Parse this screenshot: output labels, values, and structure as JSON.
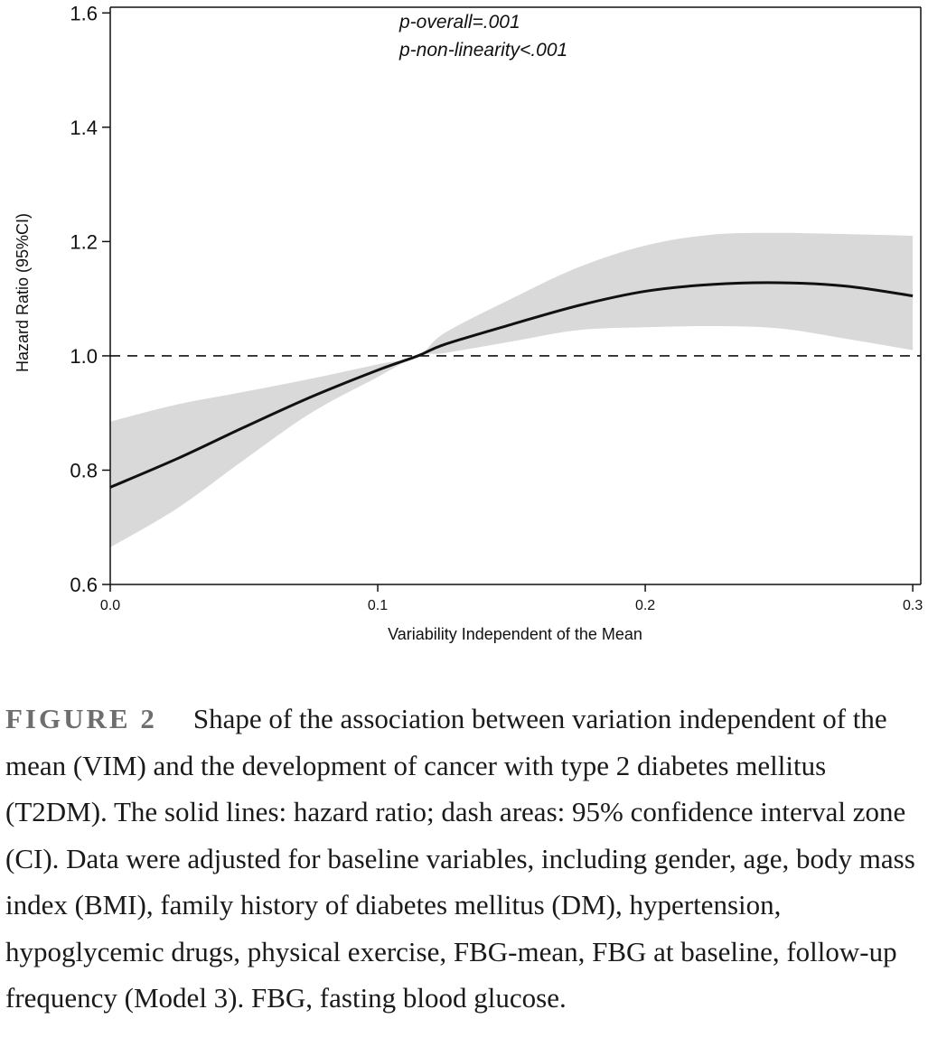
{
  "chart_data": {
    "type": "line",
    "xlabel": "Variability Independent of the Mean",
    "ylabel": "Hazard Ratio (95%CI)",
    "xlim": [
      0,
      0.303
    ],
    "ylim": [
      0.6,
      1.61
    ],
    "x_ticks": [
      0.0,
      0.1,
      0.2,
      0.3
    ],
    "x_tick_labels": [
      "0.0",
      "0.1",
      "0.2",
      "0.3"
    ],
    "y_ticks": [
      0.6,
      0.8,
      1.0,
      1.2,
      1.4,
      1.6
    ],
    "y_tick_labels": [
      "0.6",
      "0.8",
      "1.0",
      "1.2",
      "1.4",
      "1.6"
    ],
    "reference_line": {
      "y": 1.0,
      "style": "dashed"
    },
    "annotations": [
      "p-overall=.001",
      "p-non-linearity<.001"
    ],
    "grid": false,
    "series": [
      {
        "role": "hazard-ratio",
        "x": [
          0.0,
          0.025,
          0.05,
          0.075,
          0.1,
          0.115,
          0.125,
          0.15,
          0.175,
          0.2,
          0.225,
          0.25,
          0.275,
          0.3
        ],
        "y": [
          0.77,
          0.82,
          0.875,
          0.928,
          0.975,
          1.0,
          1.02,
          1.055,
          1.088,
          1.113,
          1.125,
          1.128,
          1.122,
          1.105
        ]
      }
    ],
    "ci_band": {
      "x": [
        0.0,
        0.025,
        0.05,
        0.075,
        0.1,
        0.115,
        0.125,
        0.15,
        0.175,
        0.2,
        0.225,
        0.25,
        0.275,
        0.3
      ],
      "upper": [
        0.885,
        0.915,
        0.937,
        0.96,
        0.985,
        1.0,
        1.04,
        1.1,
        1.155,
        1.193,
        1.212,
        1.215,
        1.213,
        1.21
      ],
      "lower": [
        0.665,
        0.733,
        0.818,
        0.9,
        0.963,
        1.0,
        1.005,
        1.025,
        1.045,
        1.05,
        1.052,
        1.048,
        1.03,
        1.01
      ]
    },
    "colors": {
      "line": "#111111",
      "band": "#d9d9d9",
      "reference": "#111111"
    }
  },
  "caption": {
    "label": "FIGURE 2",
    "text": "Shape of the association between variation independent of the mean (VIM) and the development of cancer with type 2 diabetes mellitus (T2DM). The solid lines: hazard ratio; dash areas: 95% confidence interval zone (CI). Data were adjusted for baseline variables, including gender, age, body mass index (BMI), family history of diabetes mellitus (DM), hypertension, hypoglycemic drugs, physical exercise, FBG-mean, FBG at baseline, follow-up frequency (Model 3). FBG, fasting blood glucose."
  }
}
